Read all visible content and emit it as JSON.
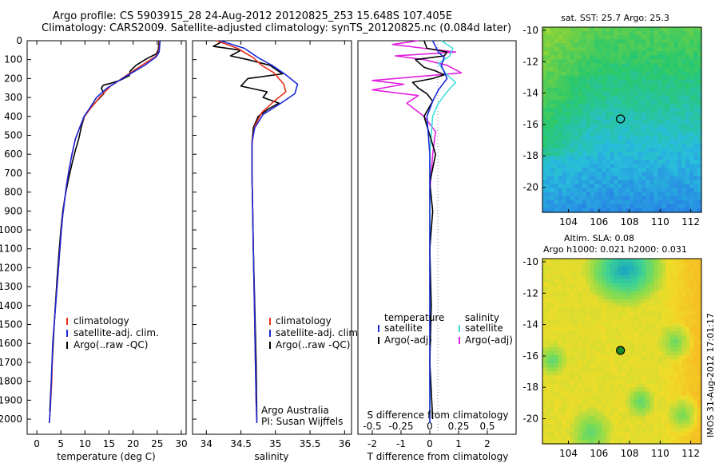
{
  "header": {
    "line1": "Argo profile: CS 5903915_28 24-Aug-2012 20120825_253 15.648S 107.405E",
    "line2": "Climatology: CARS2009. Satellite-adjusted climatology: synTS_20120825.nc (0.084d later)"
  },
  "side_stamp": "IMOS 31-Aug-2012 17:01:17",
  "chart_data": [
    {
      "type": "line",
      "id": "temperature",
      "xlabel": "temperature (deg C)",
      "xlim": [
        -2,
        31
      ],
      "ylim": [
        2080,
        0
      ],
      "xticks": [
        0,
        5,
        10,
        15,
        20,
        25,
        30
      ],
      "yticks": [
        0,
        100,
        200,
        300,
        400,
        500,
        600,
        700,
        800,
        900,
        1000,
        1100,
        1200,
        1300,
        1400,
        1500,
        1600,
        1700,
        1800,
        1900,
        2000
      ],
      "legend": [
        "climatology",
        "satellite-adj. clim.",
        "Argo(..raw -QC)"
      ],
      "colors": {
        "climatology": "#e8301e",
        "satellite": "#1a2ad8",
        "argo": "#000000"
      },
      "series": [
        {
          "name": "climatology",
          "x": [
            25.5,
            25.3,
            24.6,
            22.4,
            18.8,
            15.3,
            13.0,
            11.1,
            9.9,
            8.9,
            8.0,
            7.3,
            6.7,
            6.2,
            5.8,
            5.4,
            5.1,
            4.8,
            4.5,
            4.2,
            3.9,
            3.6,
            3.3,
            3.1,
            2.8,
            2.6
          ],
          "y": [
            0,
            60,
            85,
            120,
            180,
            240,
            300,
            360,
            400,
            460,
            520,
            600,
            680,
            760,
            840,
            920,
            1000,
            1100,
            1200,
            1300,
            1400,
            1500,
            1600,
            1800,
            1950,
            2020
          ]
        },
        {
          "name": "satellite-adj. clim.",
          "x": [
            25.6,
            25.4,
            24.8,
            22.4,
            18.4,
            14.6,
            12.4,
            10.9,
            9.8,
            8.9,
            8.0,
            7.3,
            6.7,
            6.2,
            5.8,
            5.4,
            5.1,
            4.8,
            4.5,
            4.2,
            3.9,
            3.6,
            3.3,
            3.0,
            2.8,
            2.6
          ],
          "y": [
            0,
            60,
            85,
            130,
            190,
            250,
            300,
            360,
            400,
            460,
            520,
            600,
            680,
            760,
            840,
            920,
            1000,
            1100,
            1200,
            1300,
            1400,
            1500,
            1600,
            1800,
            1950,
            2020
          ]
        },
        {
          "name": "Argo(..raw -QC)",
          "x": [
            25.4,
            25.2,
            24.8,
            23.6,
            22.5,
            20.6,
            19.4,
            19.2,
            17.2,
            15.4,
            13.8,
            13.4,
            13.9,
            12.4,
            11.0,
            9.9,
            9.3,
            8.7,
            8.0,
            7.3,
            6.5,
            5.9,
            5.4,
            5.0,
            4.6,
            4.2,
            3.8,
            3.4,
            3.0,
            2.7
          ],
          "y": [
            0,
            50,
            70,
            85,
            100,
            130,
            160,
            185,
            210,
            225,
            235,
            250,
            280,
            320,
            360,
            400,
            450,
            520,
            580,
            650,
            740,
            820,
            900,
            1000,
            1120,
            1260,
            1420,
            1600,
            1800,
            1960
          ]
        }
      ]
    },
    {
      "type": "line",
      "id": "salinity",
      "xlabel": "salinity",
      "xlim": [
        33.8,
        36.1
      ],
      "ylim": [
        2080,
        0
      ],
      "xticks": [
        34,
        34.5,
        35,
        35.5,
        36
      ],
      "legend": [
        "climatology",
        "satellite-adj. clim.",
        "Argo(..raw -QC)"
      ],
      "annotations": [
        "Argo Australia",
        "PI: Susan Wijffels"
      ],
      "colors": {
        "climatology": "#e8301e",
        "satellite": "#1a2ad8",
        "argo": "#000000"
      },
      "series": [
        {
          "name": "climatology",
          "x": [
            34.15,
            34.45,
            34.68,
            34.8,
            34.98,
            35.12,
            35.15,
            34.98,
            34.8,
            34.7,
            34.66,
            34.66,
            34.67,
            34.68,
            34.69,
            34.7,
            34.71,
            34.72,
            34.73
          ],
          "y": [
            0,
            40,
            90,
            130,
            170,
            230,
            270,
            320,
            380,
            450,
            530,
            700,
            900,
            1100,
            1300,
            1500,
            1700,
            1900,
            2020
          ]
        },
        {
          "name": "satellite-adj. clim.",
          "x": [
            34.2,
            34.55,
            34.75,
            34.95,
            35.15,
            35.32,
            35.28,
            35.08,
            34.82,
            34.7,
            34.66,
            34.66,
            34.67,
            34.68,
            34.69,
            34.7,
            34.71,
            34.72,
            34.73
          ],
          "y": [
            0,
            40,
            90,
            130,
            180,
            230,
            280,
            330,
            390,
            460,
            540,
            700,
            900,
            1100,
            1300,
            1500,
            1700,
            1900,
            2020
          ]
        },
        {
          "name": "Argo(..raw -QC)",
          "x": [
            34.25,
            34.1,
            34.5,
            34.35,
            34.6,
            34.92,
            35.1,
            34.6,
            34.5,
            34.88,
            34.82,
            35.05,
            34.9,
            34.75,
            34.68,
            34.66,
            34.66,
            34.67,
            34.68,
            34.7,
            34.72,
            34.73
          ],
          "y": [
            0,
            30,
            50,
            80,
            100,
            130,
            175,
            200,
            240,
            270,
            300,
            330,
            360,
            400,
            460,
            540,
            700,
            900,
            1100,
            1400,
            1700,
            2000
          ]
        }
      ]
    },
    {
      "type": "line",
      "id": "difference",
      "xlabel": "T difference from climatology",
      "xlabel_top": "S difference from climatology",
      "xlim": [
        -2.5,
        3.0
      ],
      "ylim": [
        2080,
        0
      ],
      "xticks": [
        -2,
        -1,
        0,
        1,
        2
      ],
      "xtick_labels_top": [
        "-0.5",
        "-0.25",
        "0",
        "0.25",
        "0.5"
      ],
      "legend": {
        "temperature": "temperature",
        "salinity": "salinity",
        "t_sat": "satellite",
        "t_argo": "Argo(-adj)",
        "s_sat": "satellite",
        "s_argo": "Argo(-adj)"
      },
      "colors": {
        "t_sat": "#1a2ad8",
        "t_argo": "#000000",
        "s_sat": "#3fe0e0",
        "s_argo": "#e020e0"
      },
      "series": [
        {
          "name": "T satellite",
          "x": [
            0.1,
            0.3,
            0.5,
            0.4,
            0.6,
            0.3,
            0.1,
            -0.1,
            0.0,
            0.0,
            0.0,
            0.0
          ],
          "y": [
            0,
            60,
            90,
            130,
            200,
            260,
            320,
            400,
            600,
            1000,
            1500,
            2020
          ]
        },
        {
          "name": "T Argo",
          "x": [
            -0.2,
            -0.1,
            0.6,
            0.5,
            -0.5,
            -0.2,
            0.2,
            0.5,
            0.1,
            -0.6,
            -0.4,
            -0.1,
            0.1,
            -0.2,
            0.0,
            0.2,
            0.0,
            0.1,
            0.0,
            0.05,
            0.0,
            0.1
          ],
          "y": [
            0,
            40,
            60,
            80,
            100,
            140,
            160,
            180,
            200,
            220,
            250,
            280,
            320,
            400,
            500,
            600,
            750,
            900,
            1100,
            1400,
            1700,
            2000
          ]
        },
        {
          "name": "S satellite",
          "x": [
            0.4,
            0.8,
            0.7,
            0.3,
            0.6,
            0.9,
            0.6,
            0.3,
            0.1,
            0.0,
            0.0,
            0.0
          ],
          "y": [
            0,
            40,
            80,
            120,
            180,
            220,
            270,
            330,
            400,
            600,
            1000,
            2020
          ]
        },
        {
          "name": "S Argo",
          "x": [
            -0.4,
            -1.3,
            -0.2,
            0.9,
            -1.2,
            -0.2,
            0.6,
            1.1,
            -2.0,
            -0.9,
            -2.0,
            -0.4,
            -0.8,
            -0.2,
            0.2,
            0.1,
            0.0
          ],
          "y": [
            0,
            20,
            40,
            60,
            80,
            100,
            130,
            170,
            210,
            230,
            260,
            290,
            330,
            400,
            480,
            600,
            800
          ]
        }
      ]
    },
    {
      "type": "heatmap",
      "id": "sst_map",
      "title": "sat. SST: 25.7 Argo: 25.3",
      "xlim": [
        102.3,
        112.7
      ],
      "ylim": [
        -21.6,
        -9.8
      ],
      "xticks": [
        104,
        106,
        108,
        110,
        112
      ],
      "yticks": [
        -10,
        -12,
        -14,
        -16,
        -18,
        -20
      ],
      "marker": {
        "lon": 107.405,
        "lat": -15.648,
        "style": "open"
      }
    },
    {
      "type": "heatmap",
      "id": "sla_map",
      "title": "Altim. SLA: 0.08",
      "subtitle": "Argo h1000: 0.021 h2000: 0.031",
      "xlim": [
        102.3,
        112.7
      ],
      "ylim": [
        -21.6,
        -9.8
      ],
      "xticks": [
        104,
        106,
        108,
        110,
        112
      ],
      "yticks": [
        -10,
        -12,
        -14,
        -16,
        -18,
        -20
      ],
      "marker": {
        "lon": 107.405,
        "lat": -15.648,
        "style": "filled"
      }
    }
  ]
}
